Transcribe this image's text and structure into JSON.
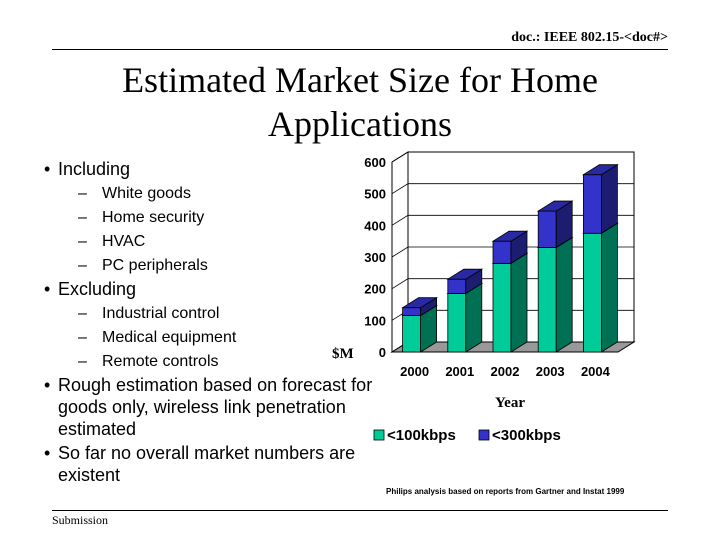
{
  "header": {
    "doc_ref": "doc.: IEEE 802.15-<doc#>"
  },
  "title": {
    "line1": "Estimated Market Size for Home",
    "line2": "Applications"
  },
  "bullets": {
    "including": "Including",
    "including_items": [
      "White goods",
      "Home security",
      "HVAC",
      "PC peripherals"
    ],
    "excluding": "Excluding",
    "excluding_items": [
      "Industrial control",
      "Medical equipment",
      "Remote controls"
    ],
    "rough_estimation": "Rough estimation based on forecast for goods only, wireless link penetration estimated",
    "no_overall": "So far no overall market numbers are existent"
  },
  "chart_data": {
    "type": "bar",
    "stacked": true,
    "three_d": true,
    "categories": [
      "2000",
      "2001",
      "2002",
      "2003",
      "2004"
    ],
    "series": [
      {
        "name": "<100kbps",
        "values": [
          115,
          185,
          280,
          330,
          375
        ],
        "color": "#00cc99"
      },
      {
        "name": "<300kbps",
        "values": [
          25,
          45,
          70,
          115,
          185
        ],
        "color": "#3333cc"
      }
    ],
    "ylim": [
      0,
      600
    ],
    "yticks": [
      0,
      100,
      200,
      300,
      400,
      500,
      600
    ],
    "ylabel": "$M",
    "xlabel": "Year",
    "grid": true,
    "legend_position": "bottom"
  },
  "source_note": "Philips analysis based on reports from Gartner and Instat 1999",
  "footer": {
    "left": "Submission"
  }
}
